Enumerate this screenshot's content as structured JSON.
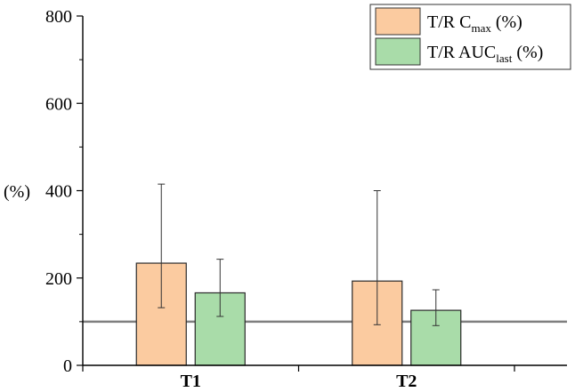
{
  "chart_data": {
    "type": "bar",
    "ylabel": "(%)",
    "ylim": [
      0,
      800
    ],
    "yticks": [
      0,
      200,
      400,
      600,
      800
    ],
    "categories": [
      "T1",
      "T2"
    ],
    "reference_line": 100,
    "grid": false,
    "legend_position": "top-right",
    "series": [
      {
        "name": "T/R Cmax (%)",
        "legend": {
          "main": "T/R C",
          "sub": "max",
          "tail": " (%)"
        },
        "color": "#fbcba0",
        "values": [
          234,
          193
        ],
        "err_low": [
          132,
          93
        ],
        "err_high": [
          415,
          400
        ]
      },
      {
        "name": "T/R AUClast (%)",
        "legend": {
          "main": "T/R AUC",
          "sub": "last",
          "tail": " (%)"
        },
        "color": "#a9dca9",
        "values": [
          166,
          126
        ],
        "err_low": [
          112,
          91
        ],
        "err_high": [
          243,
          173
        ]
      }
    ]
  }
}
